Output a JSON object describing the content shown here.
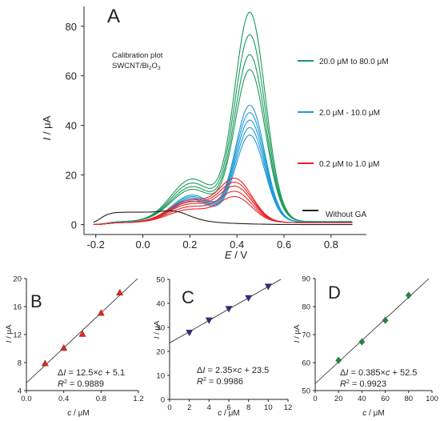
{
  "colors": {
    "green": "#1a9a5a",
    "blue": "#1e9ad6",
    "red": "#ec2227",
    "black": "#231f20",
    "red_marker": "#e8231f",
    "navy_marker": "#2b2f86",
    "green_marker": "#1e8a3c"
  },
  "chart_data": [
    {
      "panel": "A",
      "type": "line",
      "xlabel_sym": "E",
      "xlabel_rest": " / V",
      "ylabel_sym": "I",
      "ylabel_rest": " / μA",
      "xlim": [
        -0.25,
        0.95
      ],
      "ylim": [
        -4,
        88
      ],
      "xticks": [
        "-0.2",
        "0.0",
        "0.2",
        "0.4",
        "0.6",
        "0.8"
      ],
      "xtick_values": [
        -0.2,
        0.0,
        0.2,
        0.4,
        0.6,
        0.8
      ],
      "yticks": [
        "0",
        "20",
        "40",
        "60",
        "80"
      ],
      "ytick_values": [
        0,
        20,
        40,
        60,
        80
      ],
      "annotation_line1": "Calibration plot",
      "annotation_line2_base": "SWCNT/Bi",
      "annotation_line2_sub1": "2",
      "annotation_line2_mid": "O",
      "annotation_line2_sub2": "3",
      "legend": [
        {
          "label": "20.0 μM to 80.0 μM",
          "color": "green"
        },
        {
          "label": "2.0 μM - 10.0 μM",
          "color": "blue"
        },
        {
          "label": "0.2 μM to 1.0 μM",
          "color": "red"
        },
        {
          "label": "Without GA",
          "color": "black"
        }
      ],
      "series": [
        {
          "group": "green",
          "peak_current": [
            61,
            67,
            75,
            84
          ]
        },
        {
          "group": "blue",
          "peak_current": [
            35,
            38,
            41,
            44,
            47
          ]
        },
        {
          "group": "red",
          "peak_current": [
            10,
            12,
            14,
            15.5,
            17
          ]
        },
        {
          "group": "black",
          "peak_current": [
            7
          ]
        }
      ]
    },
    {
      "panel": "B",
      "type": "scatter",
      "marker": "triangle-up",
      "xlabel_sym": "c",
      "xlabel_rest": " / μM",
      "ylabel_sym": "I",
      "ylabel_rest": " / μA",
      "xlim": [
        0,
        1.2
      ],
      "ylim": [
        4,
        20
      ],
      "xticks": [
        "0.0",
        "0.4",
        "0.8",
        "1.2"
      ],
      "xtick_values": [
        0.0,
        0.4,
        0.8,
        1.2
      ],
      "yticks": [
        "4",
        "8",
        "12",
        "16",
        "20"
      ],
      "ytick_values": [
        4,
        8,
        12,
        16,
        20
      ],
      "x": [
        0.2,
        0.4,
        0.6,
        0.8,
        1.0
      ],
      "y": [
        7.9,
        10.1,
        12.1,
        15.1,
        18.0
      ],
      "fit": {
        "slope": 12.5,
        "intercept": 5.1
      },
      "eq": "ΔI = 12.5×c + 5.1",
      "r2_value": "= 0.9889"
    },
    {
      "panel": "C",
      "type": "scatter",
      "marker": "triangle-down",
      "xlabel_sym": "c",
      "xlabel_rest": " / μM",
      "ylabel_sym": "I",
      "ylabel_rest": " / μA",
      "xlim": [
        0,
        12
      ],
      "ylim": [
        0,
        50
      ],
      "xticks": [
        "0",
        "2",
        "4",
        "6",
        "8",
        "10",
        "12"
      ],
      "xtick_values": [
        0,
        2,
        4,
        6,
        8,
        10,
        12
      ],
      "yticks": [
        "0",
        "10",
        "20",
        "30",
        "40",
        "50"
      ],
      "ytick_values": [
        0,
        10,
        20,
        30,
        40,
        50
      ],
      "x": [
        2,
        4,
        6,
        8,
        10
      ],
      "y": [
        27.8,
        32.9,
        37.7,
        42.2,
        47.0
      ],
      "fit": {
        "slope": 2.35,
        "intercept": 23.5
      },
      "eq": "ΔI = 2.35×c + 23.5",
      "r2_value": "= 0.9986"
    },
    {
      "panel": "D",
      "type": "scatter",
      "marker": "diamond",
      "xlabel_sym": "c",
      "xlabel_rest": " / μM",
      "ylabel_sym": "I",
      "ylabel_rest": " / μA",
      "xlim": [
        0,
        100
      ],
      "ylim": [
        50,
        90
      ],
      "xticks": [
        "0",
        "20",
        "40",
        "60",
        "80",
        "100"
      ],
      "xtick_values": [
        0,
        20,
        40,
        60,
        80,
        100
      ],
      "yticks": [
        "50",
        "60",
        "70",
        "80",
        "90"
      ],
      "ytick_values": [
        50,
        60,
        70,
        80,
        90
      ],
      "x": [
        20,
        40,
        60,
        80
      ],
      "y": [
        60.8,
        67.4,
        75.1,
        84.0
      ],
      "fit": {
        "slope": 0.385,
        "intercept": 52.5
      },
      "eq": "ΔI = 0.385×c + 52.5",
      "r2_value": "= 0.9923"
    }
  ]
}
